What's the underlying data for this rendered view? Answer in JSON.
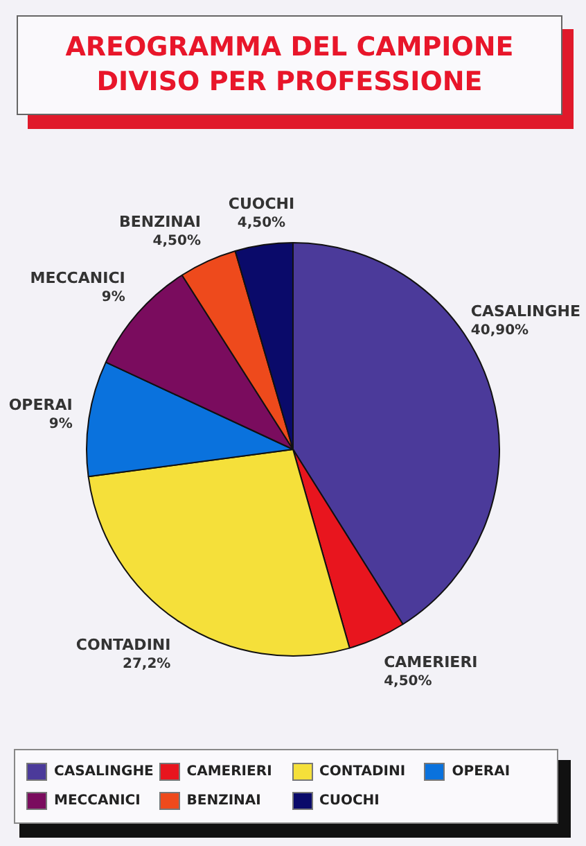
{
  "chart_data": {
    "type": "pie",
    "title": "AREOGRAMMA DEL CAMPIONE\nDIVISO PER PROFESSIONE",
    "categories": [
      "CASALINGHE",
      "CAMERIERI",
      "CONTADINI",
      "OPERAI",
      "MECCANICI",
      "BENZINAI",
      "CUOCHI"
    ],
    "values": [
      40.9,
      4.5,
      27.2,
      9,
      9,
      4.5,
      4.5
    ],
    "value_labels": [
      "40,90%",
      "4,50%",
      "27,2%",
      "9%",
      "9%",
      "4,50%",
      "4,50%"
    ],
    "colors": [
      "#4b3a9a",
      "#e8151e",
      "#f5e03a",
      "#0a72dd",
      "#7a0c5e",
      "#ee4a1c",
      "#0a0a6a"
    ],
    "legend": "bottom"
  }
}
